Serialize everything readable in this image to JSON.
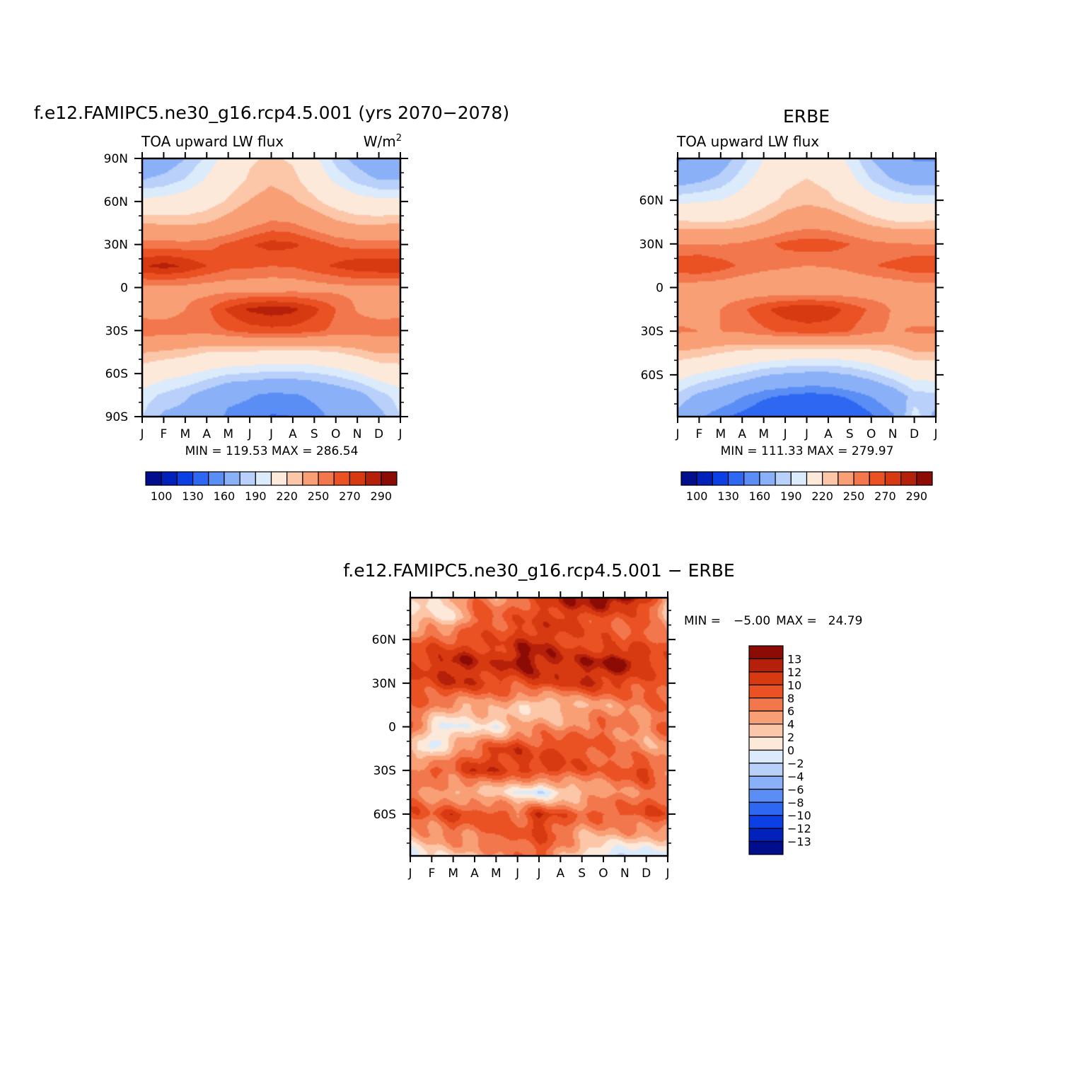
{
  "chart_data": [
    {
      "type": "heatmap",
      "title": "f.e12.FAMIPC5.ne30_g16.rcp4.5.001 (yrs 2070-2078)",
      "subtitle_left": "TOA upward LW flux",
      "units_base": "W/m",
      "units_exp": "2",
      "x_ticks": [
        "J",
        "F",
        "M",
        "A",
        "M",
        "J",
        "J",
        "A",
        "S",
        "O",
        "N",
        "D",
        "J"
      ],
      "y_range": [
        -90,
        90
      ],
      "y_ticks": [
        {
          "value": 90,
          "label": "90N"
        },
        {
          "value": 60,
          "label": "60N"
        },
        {
          "value": 30,
          "label": "30N"
        },
        {
          "value": 0,
          "label": "0"
        },
        {
          "value": -30,
          "label": "30S"
        },
        {
          "value": -60,
          "label": "60S"
        },
        {
          "value": -90,
          "label": "90S"
        }
      ],
      "stats": "MIN = 119.53 MAX = 286.54",
      "min": 119.53,
      "max": 286.54,
      "colorbar": {
        "orientation": "horizontal",
        "labels": [
          "100",
          "130",
          "160",
          "190",
          "220",
          "250",
          "270",
          "290"
        ],
        "colors": [
          "#000d8c",
          "#0022bb",
          "#0d3fe6",
          "#2e67f2",
          "#5b8ef5",
          "#8ab0f8",
          "#b9d0fa",
          "#dcebfb",
          "#fde9da",
          "#fcc6a9",
          "#f89f76",
          "#f3774d",
          "#ea5123",
          "#d73a10",
          "#b5200a",
          "#8c0b05"
        ]
      },
      "field": {
        "months": [
          1,
          2,
          3,
          4,
          5,
          6,
          7,
          8,
          9,
          10,
          11,
          12,
          13
        ],
        "lats": [
          -90,
          -75,
          -60,
          -45,
          -30,
          -15,
          0,
          15,
          30,
          45,
          60,
          75,
          90
        ],
        "values": [
          [
            190,
            177,
            175,
            170,
            157,
            155,
            149,
            150,
            155,
            164,
            168,
            175,
            190
          ],
          [
            195,
            188,
            182,
            174,
            164,
            161,
            157,
            158,
            163,
            169,
            175,
            186,
            195
          ],
          [
            211,
            205,
            202,
            196,
            191,
            189,
            187,
            187,
            189,
            193,
            199,
            207,
            211
          ],
          [
            231,
            228,
            225,
            220,
            219,
            218,
            217,
            216,
            217,
            220,
            225,
            232,
            231
          ],
          [
            258,
            255,
            255,
            255,
            260,
            265,
            267,
            266,
            263,
            257,
            255,
            257,
            258
          ],
          [
            244,
            245,
            250,
            258,
            272,
            282,
            286,
            283,
            273,
            260,
            249,
            244,
            244
          ],
          [
            247,
            247,
            246,
            244,
            243,
            242,
            241,
            242,
            244,
            246,
            247,
            247,
            247
          ],
          [
            279,
            284,
            279,
            270,
            263,
            262,
            260,
            261,
            266,
            272,
            277,
            279,
            279
          ],
          [
            255,
            255,
            254,
            256,
            262,
            269,
            274,
            272,
            266,
            259,
            256,
            255,
            255
          ],
          [
            230,
            228,
            227,
            230,
            236,
            245,
            252,
            250,
            241,
            233,
            228,
            228,
            230
          ],
          [
            204,
            205,
            208,
            213,
            222,
            231,
            236,
            232,
            223,
            213,
            206,
            204,
            204
          ],
          [
            180,
            184,
            191,
            202,
            212,
            222,
            228,
            224,
            211,
            197,
            187,
            180,
            180
          ],
          [
            165,
            170,
            180,
            192,
            207,
            218,
            222,
            218,
            203,
            186,
            175,
            165,
            165
          ]
        ]
      }
    },
    {
      "type": "heatmap",
      "title": "ERBE",
      "subtitle_left": "TOA upward LW flux",
      "x_ticks": [
        "J",
        "F",
        "M",
        "A",
        "M",
        "J",
        "J",
        "A",
        "S",
        "O",
        "N",
        "D",
        "J"
      ],
      "y_range": [
        -88.75,
        88.75
      ],
      "y_ticks": [
        {
          "value": 60,
          "label": "60N"
        },
        {
          "value": 30,
          "label": "30N"
        },
        {
          "value": 0,
          "label": "0"
        },
        {
          "value": -30,
          "label": "30S"
        },
        {
          "value": -60,
          "label": "60S"
        }
      ],
      "stats": "MIN = 111.33 MAX = 279.97",
      "min": 111.33,
      "max": 279.97,
      "colorbar": {
        "orientation": "horizontal",
        "labels": [
          "100",
          "130",
          "160",
          "190",
          "220",
          "250",
          "270",
          "290"
        ],
        "colors": [
          "#000d8c",
          "#0022bb",
          "#0d3fe6",
          "#2e67f2",
          "#5b8ef5",
          "#8ab0f8",
          "#b9d0fa",
          "#dcebfb",
          "#fde9da",
          "#fcc6a9",
          "#f89f76",
          "#f3774d",
          "#ea5123",
          "#d73a10",
          "#b5200a",
          "#8c0b05"
        ]
      },
      "field": {
        "months": [
          1,
          2,
          3,
          4,
          5,
          6,
          7,
          8,
          9,
          10,
          11,
          12,
          13
        ],
        "lats": [
          -88.75,
          -75,
          -60,
          -45,
          -30,
          -15,
          0,
          15,
          30,
          45,
          60,
          75,
          88.75
        ],
        "values": [
          [
            175,
            162,
            152,
            146,
            139,
            136,
            130,
            133,
            138,
            148,
            158,
            196,
            175
          ],
          [
            187,
            176,
            170,
            160,
            152,
            148,
            145,
            146,
            152,
            160,
            169,
            185,
            187
          ],
          [
            205,
            198,
            193,
            188,
            181,
            178,
            176,
            176,
            180,
            186,
            195,
            205,
            205
          ],
          [
            228,
            225,
            220,
            215,
            212,
            210,
            208,
            208,
            210,
            214,
            220,
            228,
            228
          ],
          [
            252,
            250,
            250,
            252,
            258,
            262,
            265,
            264,
            260,
            253,
            248,
            252,
            252
          ],
          [
            244,
            245,
            250,
            258,
            268,
            276,
            279,
            276,
            267,
            258,
            249,
            244,
            244
          ],
          [
            244,
            243,
            242,
            240,
            238,
            236,
            235,
            236,
            238,
            240,
            242,
            244,
            244
          ],
          [
            268,
            270,
            265,
            258,
            254,
            252,
            250,
            251,
            254,
            259,
            263,
            268,
            268
          ],
          [
            250,
            250,
            249,
            252,
            257,
            263,
            266,
            265,
            260,
            254,
            251,
            250,
            250
          ],
          [
            222,
            220,
            220,
            223,
            230,
            238,
            243,
            241,
            234,
            226,
            221,
            220,
            222
          ],
          [
            196,
            198,
            200,
            206,
            215,
            223,
            227,
            223,
            215,
            205,
            198,
            196,
            196
          ],
          [
            172,
            176,
            183,
            195,
            206,
            216,
            220,
            216,
            204,
            189,
            179,
            172,
            172
          ],
          [
            158,
            162,
            172,
            186,
            200,
            212,
            216,
            212,
            196,
            180,
            168,
            158,
            158
          ]
        ]
      }
    },
    {
      "type": "heatmap",
      "title": "f.e12.FAMIPC5.ne30_g16.rcp4.5.001 - ERBE",
      "x_ticks": [
        "J",
        "F",
        "M",
        "A",
        "M",
        "J",
        "J",
        "A",
        "S",
        "O",
        "N",
        "D",
        "J"
      ],
      "y_range": [
        -88.75,
        88.75
      ],
      "y_ticks": [
        {
          "value": 60,
          "label": "60N"
        },
        {
          "value": 30,
          "label": "30N"
        },
        {
          "value": 0,
          "label": "0"
        },
        {
          "value": -30,
          "label": "30S"
        },
        {
          "value": -60,
          "label": "60S"
        }
      ],
      "stats_min_label": "MIN =",
      "stats_min_value": "-5.00",
      "stats_max_label": "MAX =",
      "stats_max_value": "24.79",
      "min": -5.0,
      "max": 24.79,
      "colorbar": {
        "orientation": "vertical",
        "labels": [
          "13",
          "12",
          "10",
          "8",
          "6",
          "4",
          "2",
          "0",
          "-2",
          "-4",
          "-6",
          "-8",
          "-10",
          "-12",
          "-13"
        ],
        "colors_top_to_bottom": [
          "#8c0b05",
          "#b5200a",
          "#d73a10",
          "#ea5123",
          "#f3774d",
          "#f89f76",
          "#fcc6a9",
          "#fde9da",
          "#dcebfb",
          "#b9d0fa",
          "#8ab0f8",
          "#5b8ef5",
          "#2e67f2",
          "#0d3fe6",
          "#0022bb",
          "#000d8c"
        ]
      },
      "field": {
        "months": [
          1,
          2,
          3,
          4,
          5,
          6,
          7,
          8,
          9,
          10,
          11,
          12,
          13
        ],
        "lats": [
          -88.75,
          -75,
          -60,
          -45,
          -30,
          -15,
          0,
          15,
          30,
          45,
          60,
          75,
          88.75
        ],
        "values": [
          [
            -1,
            2,
            3,
            4,
            5,
            7,
            9,
            5,
            2,
            -2,
            -3,
            -1,
            -1
          ],
          [
            4,
            5,
            7,
            6,
            9,
            8,
            10,
            8,
            4,
            4,
            5,
            4,
            4
          ],
          [
            10,
            8,
            11,
            9,
            10,
            7,
            12,
            9,
            8,
            9,
            8,
            10,
            10
          ],
          [
            7,
            5,
            4,
            3,
            2,
            1,
            -2,
            1,
            3,
            5,
            6,
            7,
            7
          ],
          [
            6,
            9,
            8,
            12,
            11,
            10,
            11,
            10,
            9,
            8,
            9,
            11,
            6
          ],
          [
            4,
            -1,
            5,
            7,
            10,
            11,
            9,
            11,
            9,
            8,
            7,
            5,
            4
          ],
          [
            9,
            1,
            -1,
            2,
            0,
            4,
            6,
            5,
            7,
            8,
            6,
            5,
            9
          ],
          [
            8,
            7,
            5,
            4,
            6,
            3,
            1,
            3,
            4,
            5,
            6,
            7,
            8
          ],
          [
            9,
            10,
            12,
            11,
            10,
            9,
            11,
            10,
            12,
            11,
            10,
            9,
            9
          ],
          [
            10,
            11,
            13,
            12,
            11,
            14,
            13,
            12,
            12,
            13,
            14,
            11,
            10
          ],
          [
            7,
            9,
            8,
            10,
            9,
            11,
            12,
            10,
            9,
            9,
            8,
            9,
            7
          ],
          [
            2,
            3,
            1,
            9,
            8,
            9,
            10,
            11,
            10,
            9,
            8,
            9,
            2
          ],
          [
            3,
            1,
            3,
            8,
            5,
            7,
            10,
            12,
            13,
            15,
            14,
            12,
            3
          ]
        ]
      }
    }
  ]
}
